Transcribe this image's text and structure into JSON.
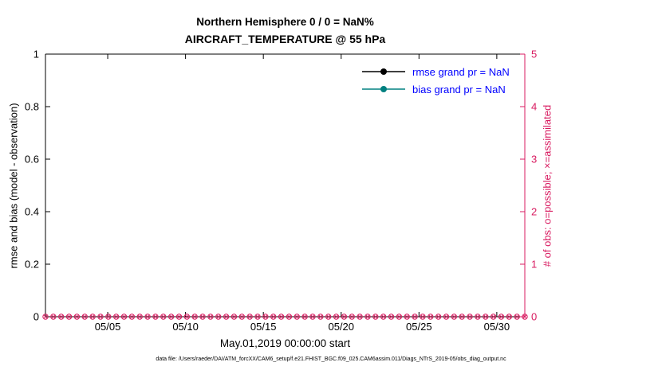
{
  "figure": {
    "title_line1": "Northern Hemisphere 0 / 0 = NaN%",
    "title_line2": "AIRCRAFT_TEMPERATURE @ 55 hPa",
    "caption": "data file: /Users/raeder/DAI/ATM_forcXX/CAM6_setup/f.e21.FHIST_BGC.f09_025.CAM6assim.011/Diags_NTrS_2019-05/obs_diag_output.nc"
  },
  "chart_data": {
    "type": "line",
    "title": "Northern Hemisphere 0 / 0 = NaN%",
    "subtitle": "AIRCRAFT_TEMPERATURE @ 55 hPa",
    "x_axis": {
      "label": "May.01,2019 00:00:00 start",
      "tick_labels": [
        "05/05",
        "05/10",
        "05/15",
        "05/20",
        "05/25",
        "05/30"
      ],
      "tick_days": [
        5,
        10,
        15,
        20,
        25,
        30
      ],
      "range_days": [
        1,
        31.8
      ],
      "grid": false
    },
    "left_axis": {
      "label": "rmse and bias (model - observation)",
      "ticks": [
        "0",
        "0.2",
        "0.4",
        "0.6",
        "0.8",
        "1"
      ],
      "tick_values": [
        0,
        0.2,
        0.4,
        0.6,
        0.8,
        1
      ],
      "range": [
        0,
        1
      ],
      "color": "#000000"
    },
    "right_axis": {
      "label": "# of obs: o=possible; ×=assimilated",
      "ticks": [
        "0",
        "1",
        "2",
        "3",
        "4",
        "5"
      ],
      "tick_values": [
        0,
        1,
        2,
        3,
        4,
        5
      ],
      "range": [
        0,
        5
      ],
      "color": "#d81b60"
    },
    "series": [
      {
        "name": "rmse",
        "legend_label": "rmse grand pr = NaN",
        "color": "#000000",
        "values": [],
        "note": "all NaN, no line drawn"
      },
      {
        "name": "bias",
        "legend_label": "bias grand pr = NaN",
        "color": "#008080",
        "values": [],
        "note": "all NaN, no line drawn"
      },
      {
        "name": "possible-obs",
        "marker": "o",
        "color": "#d81b60",
        "axis": "right",
        "constant_y": 0,
        "points": 62
      },
      {
        "name": "assimilated-obs",
        "marker": "x",
        "color": "#d81b60",
        "axis": "right",
        "constant_y": 0,
        "points": 62
      }
    ],
    "legend": {
      "position": "top-right-inside",
      "border": false,
      "text_color": "#0000ff",
      "entries": [
        {
          "label": "rmse grand pr = NaN",
          "color": "#000000"
        },
        {
          "label": "bias grand pr = NaN",
          "color": "#008080"
        }
      ]
    }
  }
}
